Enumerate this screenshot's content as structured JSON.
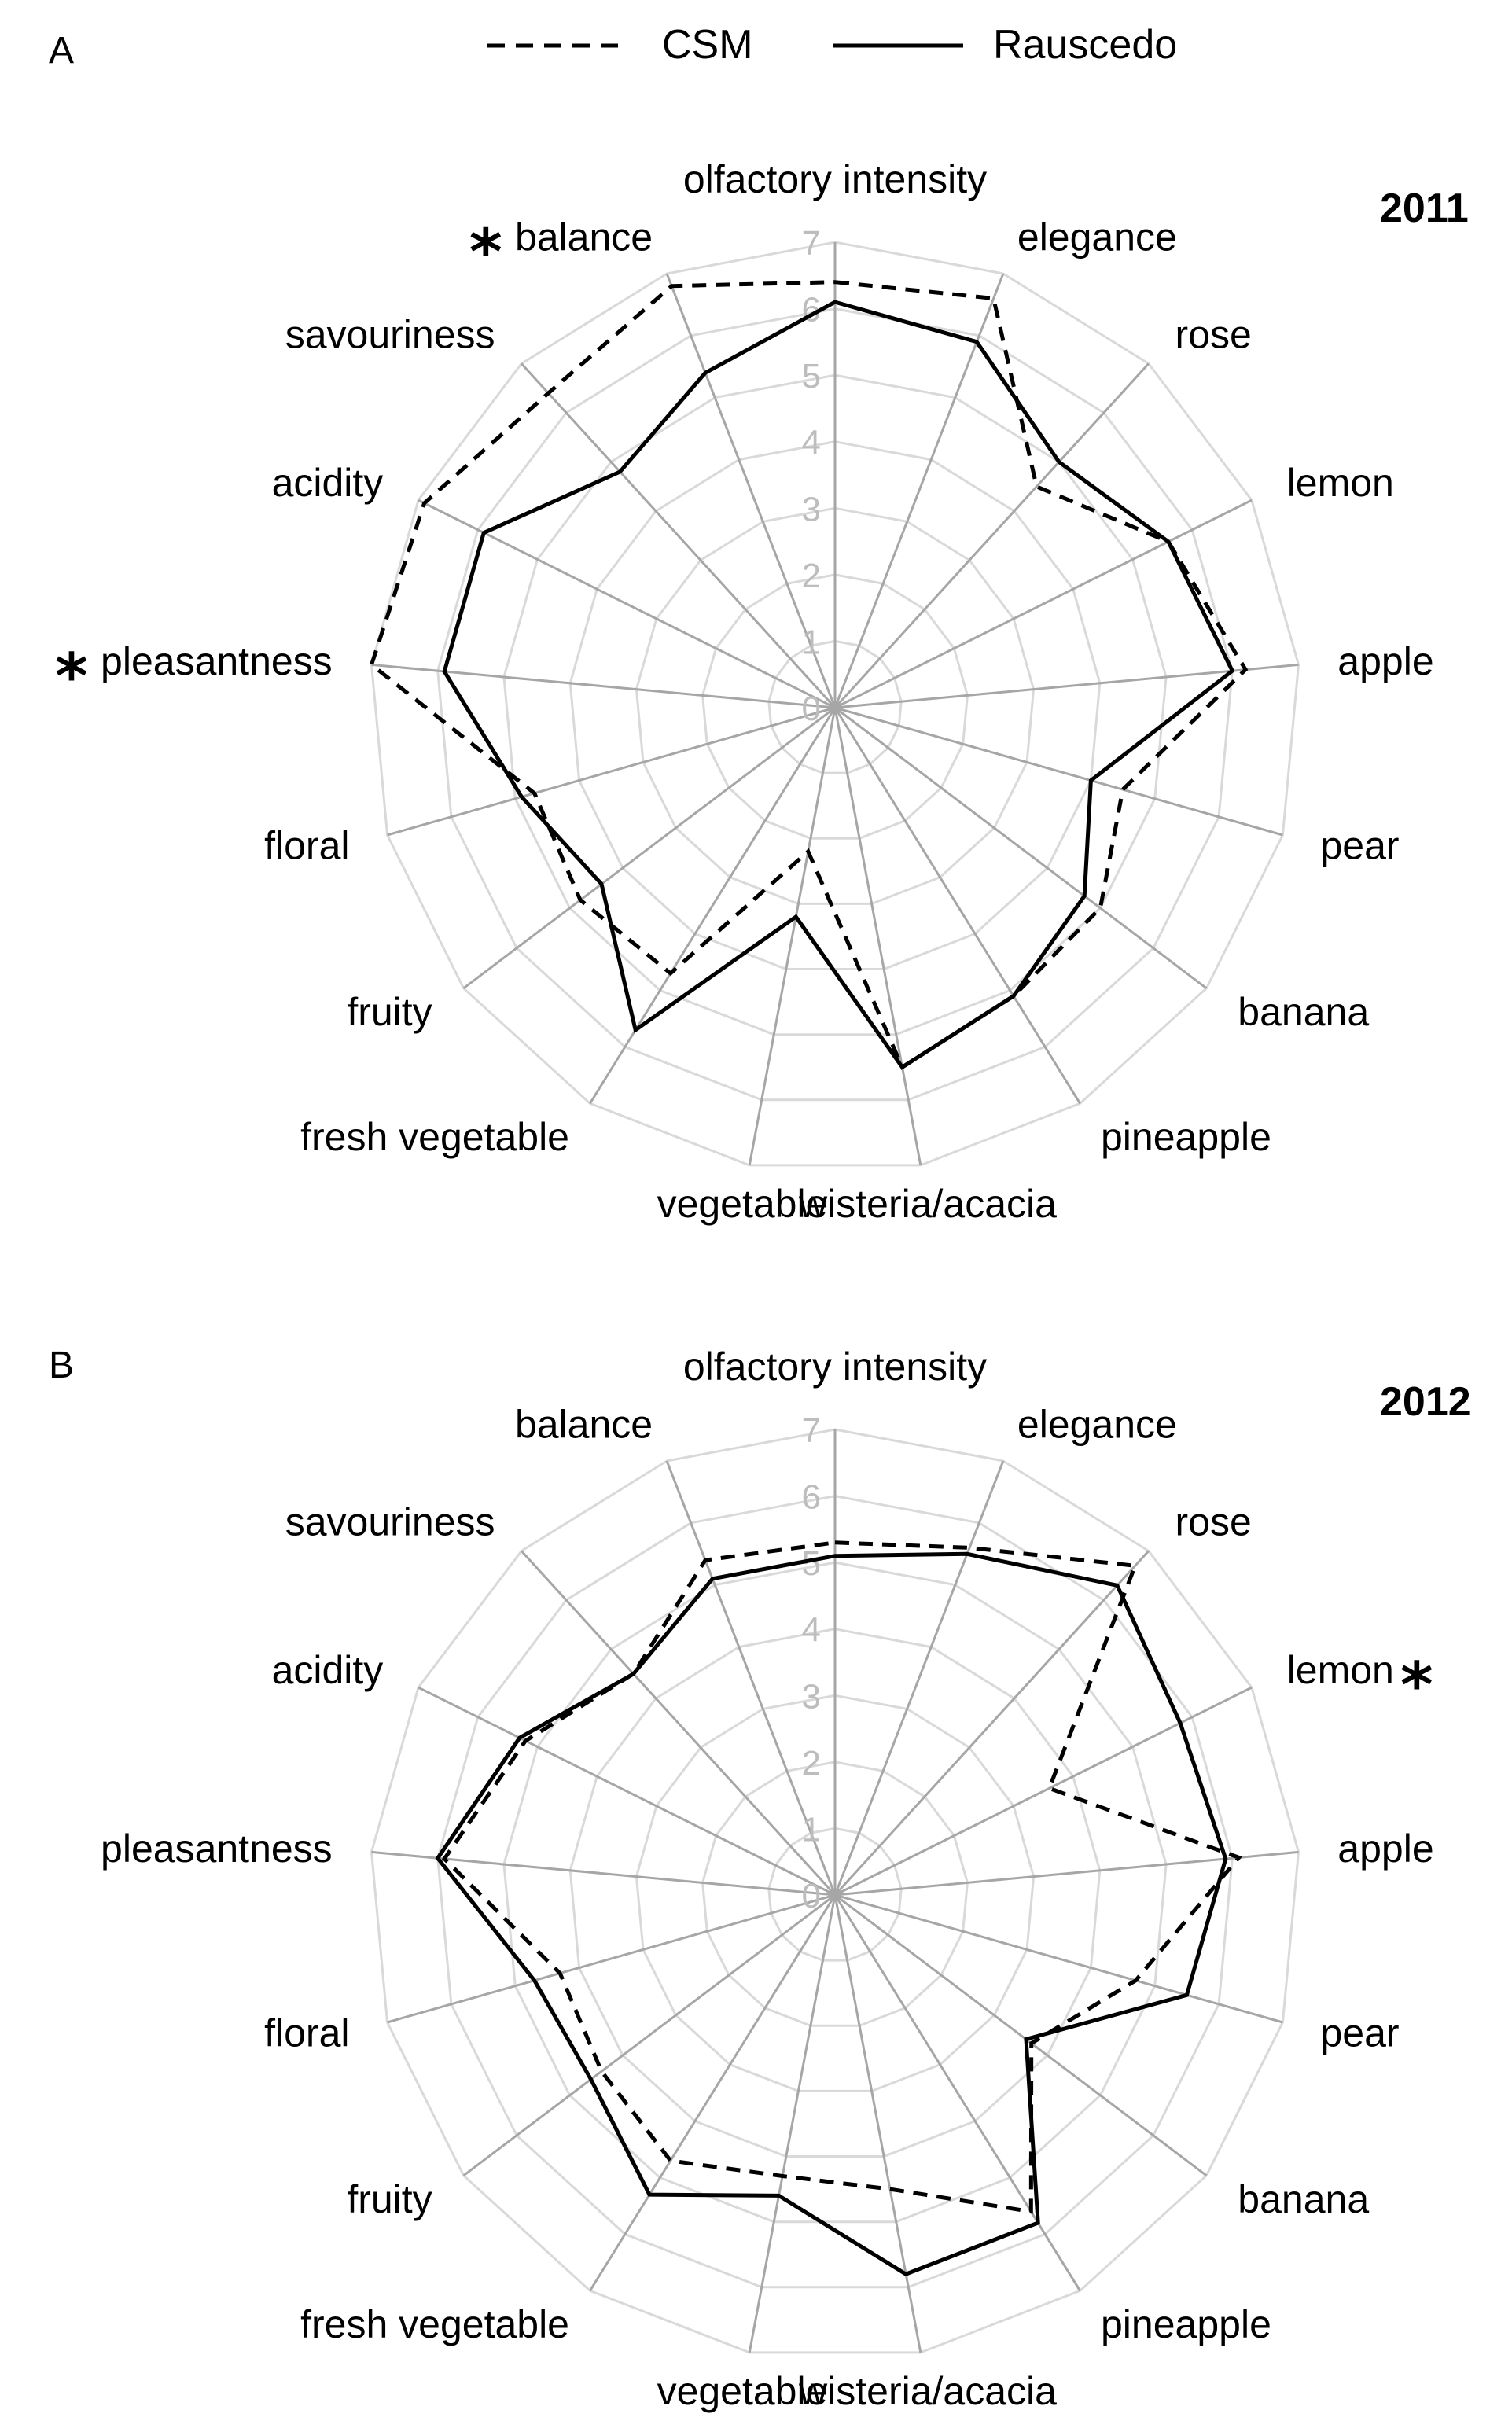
{
  "legend": [
    {
      "name": "CSM",
      "style": "dashed"
    },
    {
      "name": "Rauscedo",
      "style": "solid"
    }
  ],
  "colors": {
    "series": "#000000",
    "grid": "#d9d9d9",
    "spokes": "#a6a6a6",
    "ticks": "#bdbdbd"
  },
  "chart_data": [
    {
      "type": "radar",
      "panel": "A",
      "year": "2011",
      "axes": [
        "olfactory intensity",
        "elegance",
        "rose",
        "lemon",
        "apple",
        "pear",
        "banana",
        "pineapple",
        "wisteria/acacia",
        "vegetable",
        "fresh vegetable",
        "fruity",
        "floral",
        "pleasantness",
        "acidity",
        "savouriness",
        "balance"
      ],
      "significant": [
        "pleasantness",
        "balance"
      ],
      "ticks": [
        "0",
        "1",
        "2",
        "3",
        "4",
        "5",
        "6",
        "7"
      ],
      "range": [
        0,
        7
      ],
      "series": [
        {
          "name": "CSM",
          "values": [
            6.4,
            6.6,
            4.5,
            5.6,
            6.2,
            4.5,
            5.0,
            5.1,
            5.5,
            2.2,
            4.7,
            4.8,
            4.7,
            7.0,
            6.9,
            6.4,
            6.8
          ]
        },
        {
          "name": "Rauscedo",
          "values": [
            6.1,
            5.9,
            5.0,
            5.6,
            6.0,
            4.0,
            4.7,
            5.1,
            5.5,
            3.2,
            5.7,
            4.4,
            4.9,
            5.9,
            5.9,
            4.8,
            5.4
          ]
        }
      ]
    },
    {
      "type": "radar",
      "panel": "B",
      "year": "2012",
      "axes": [
        "olfactory intensity",
        "elegance",
        "rose",
        "lemon",
        "apple",
        "pear",
        "banana",
        "pineapple",
        "wisteria/acacia",
        "vegetable",
        "fresh vegetable",
        "fruity",
        "floral",
        "pleasantness",
        "acidity",
        "savouriness",
        "balance"
      ],
      "significant": [
        "lemon"
      ],
      "ticks": [
        "0",
        "1",
        "2",
        "3",
        "4",
        "5",
        "6",
        "7"
      ],
      "range": [
        0,
        7
      ],
      "series": [
        {
          "name": "CSM",
          "values": [
            5.3,
            5.6,
            6.7,
            3.6,
            6.1,
            4.7,
            3.7,
            5.6,
            4.5,
            4.3,
            4.7,
            4.4,
            4.3,
            5.9,
            5.2,
            4.5,
            5.4
          ]
        },
        {
          "name": "Rauscedo",
          "values": [
            5.1,
            5.5,
            6.3,
            5.8,
            5.9,
            5.5,
            3.6,
            5.8,
            5.8,
            4.6,
            5.3,
            4.6,
            4.7,
            6.0,
            5.3,
            4.5,
            5.1
          ]
        }
      ]
    }
  ]
}
